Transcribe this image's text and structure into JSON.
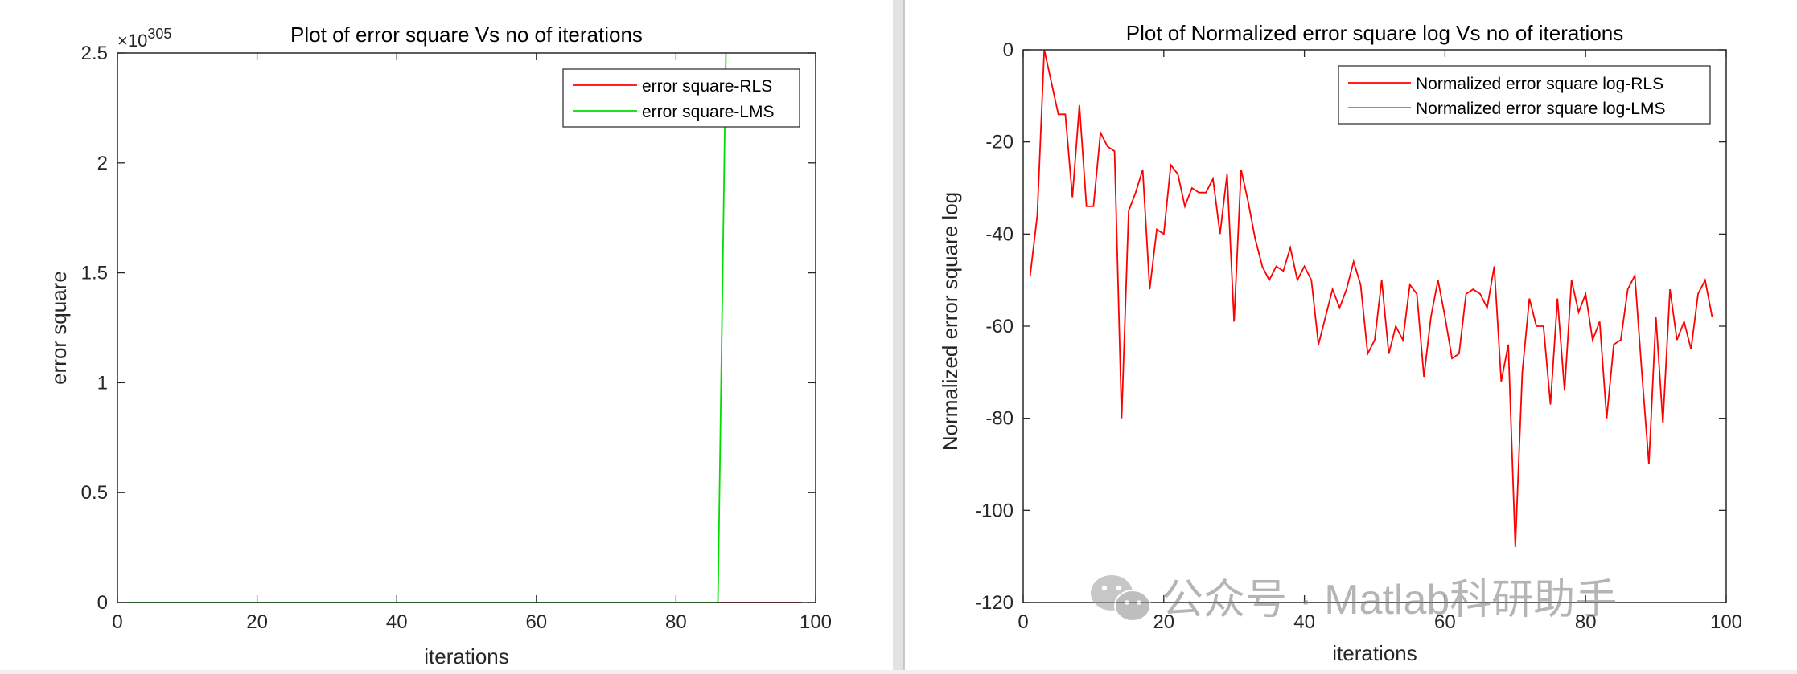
{
  "watermark": {
    "text": "公众号 · Matlab科研助手",
    "icon": "wechat-icon"
  },
  "colors": {
    "rls": "#ff0000",
    "lms": "#00dd00",
    "axes": "#262626",
    "background": "#ffffff",
    "divider": "#d9d9d9"
  },
  "chart_data": [
    {
      "type": "line",
      "title": "Plot of error square Vs no of iterations",
      "xlabel": "iterations",
      "ylabel": "error square",
      "exponent_label": "×10",
      "exponent_power": "305",
      "xlim": [
        0,
        100
      ],
      "ylim": [
        0,
        2.5
      ],
      "xticks": [
        "0",
        "20",
        "40",
        "60",
        "80",
        "100"
      ],
      "yticks": [
        "0",
        "0.5",
        "1",
        "1.5",
        "2",
        "2.5"
      ],
      "xtick_values": [
        0,
        20,
        40,
        60,
        80,
        100
      ],
      "ytick_values": [
        0,
        0.5,
        1,
        1.5,
        2,
        2.5
      ],
      "box": true,
      "legend": "top-right",
      "series": [
        {
          "name": "error square-RLS",
          "color": "#ff0000",
          "x": [
            86,
            98
          ],
          "y": [
            0,
            0
          ]
        },
        {
          "name": "error square-LMS",
          "color": "#00dd00",
          "x": [
            1,
            86,
            87,
            87.15
          ],
          "y": [
            0,
            0,
            2.2,
            2.5
          ]
        }
      ]
    },
    {
      "type": "line",
      "title": "Plot of Normalized error square log Vs no of iterations",
      "xlabel": "iterations",
      "ylabel": "Normalized error square log",
      "xlim": [
        0,
        100
      ],
      "ylim": [
        -120,
        0
      ],
      "xticks": [
        "0",
        "20",
        "40",
        "60",
        "80",
        "100"
      ],
      "yticks": [
        "-120",
        "-100",
        "-80",
        "-60",
        "-40",
        "-20",
        "0"
      ],
      "xtick_values": [
        0,
        20,
        40,
        60,
        80,
        100
      ],
      "ytick_values": [
        -120,
        -100,
        -80,
        -60,
        -40,
        -20,
        0
      ],
      "box": true,
      "legend": "top-right",
      "series": [
        {
          "name": "Normalized error square log-RLS",
          "color": "#ff0000",
          "x": [
            1,
            2,
            3,
            4,
            5,
            6,
            7,
            8,
            9,
            10,
            11,
            12,
            13,
            14,
            15,
            16,
            17,
            18,
            19,
            20,
            21,
            22,
            23,
            24,
            25,
            26,
            27,
            28,
            29,
            30,
            31,
            32,
            33,
            34,
            35,
            36,
            37,
            38,
            39,
            40,
            41,
            42,
            43,
            44,
            45,
            46,
            47,
            48,
            49,
            50,
            51,
            52,
            53,
            54,
            55,
            56,
            57,
            58,
            59,
            60,
            61,
            62,
            63,
            64,
            65,
            66,
            67,
            68,
            69,
            70,
            71,
            72,
            73,
            74,
            75,
            76,
            77,
            78,
            79,
            80,
            81,
            82,
            83,
            84,
            85,
            86,
            87,
            88,
            89,
            90,
            91,
            92,
            93,
            94,
            95,
            96,
            97,
            98
          ],
          "y": [
            -49,
            -36,
            0,
            -7,
            -14,
            -14,
            -32,
            -12,
            -34,
            -34,
            -18,
            -21,
            -22,
            -80,
            -35,
            -31,
            -26,
            -52,
            -39,
            -40,
            -25,
            -27,
            -34,
            -30,
            -31,
            -31,
            -28,
            -40,
            -27,
            -59,
            -26,
            -33,
            -41,
            -47,
            -50,
            -47,
            -48,
            -43,
            -50,
            -47,
            -50,
            -64,
            -58,
            -52,
            -56,
            -52,
            -46,
            -51,
            -66,
            -63,
            -50,
            -66,
            -60,
            -63,
            -51,
            -53,
            -71,
            -58,
            -50,
            -58,
            -67,
            -66,
            -53,
            -52,
            -53,
            -56,
            -47,
            -72,
            -64,
            -108,
            -70,
            -54,
            -60,
            -60,
            -77,
            -54,
            -74,
            -50,
            -57,
            -53,
            -63,
            -59,
            -80,
            -64,
            -63,
            -52,
            -49,
            -70,
            -90,
            -58,
            -81,
            -52,
            -63,
            -59,
            -65,
            -53,
            -50,
            -58
          ]
        },
        {
          "name": "Normalized error square log-LMS",
          "color": "#00dd00",
          "x": [],
          "y": []
        }
      ]
    }
  ]
}
